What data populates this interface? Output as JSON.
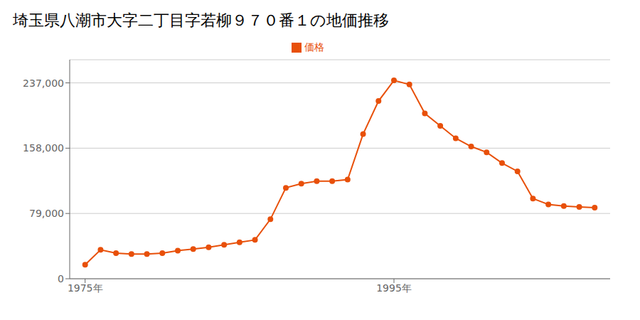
{
  "chart_data": {
    "type": "line",
    "title": "埼玉県八潮市大字二丁目字若柳９７０番１の地価推移",
    "x": [
      1975,
      1976,
      1977,
      1978,
      1979,
      1980,
      1981,
      1982,
      1983,
      1984,
      1985,
      1986,
      1987,
      1988,
      1989,
      1990,
      1991,
      1992,
      1993,
      1994,
      1995,
      1996,
      1997,
      1998,
      1999,
      2000,
      2001,
      2002,
      2003,
      2004,
      2005,
      2006,
      2007,
      2008
    ],
    "series": [
      {
        "name": "価格",
        "color": "#e8500a",
        "marker": "circle",
        "values": [
          17000,
          35000,
          31000,
          30000,
          30000,
          31000,
          34000,
          36000,
          38000,
          41000,
          44000,
          47000,
          72000,
          110000,
          115000,
          118000,
          118000,
          120000,
          175000,
          215000,
          240000,
          235000,
          200000,
          185000,
          170000,
          160000,
          153000,
          140000,
          130000,
          97000,
          90000,
          88000,
          87000,
          86000
        ]
      }
    ],
    "xlim": [
      1974,
      2009
    ],
    "xticks": [
      {
        "value": 1975,
        "label": "1975年"
      },
      {
        "value": 1995,
        "label": "1995年"
      }
    ],
    "ylim": [
      0,
      265000
    ],
    "yticks": [
      0,
      {
        "value": 79000,
        "label": "79,000"
      },
      {
        "value": 158000,
        "label": "158,000"
      },
      {
        "value": 237000,
        "label": "237,000"
      }
    ],
    "grid": "y",
    "legend": "top"
  }
}
